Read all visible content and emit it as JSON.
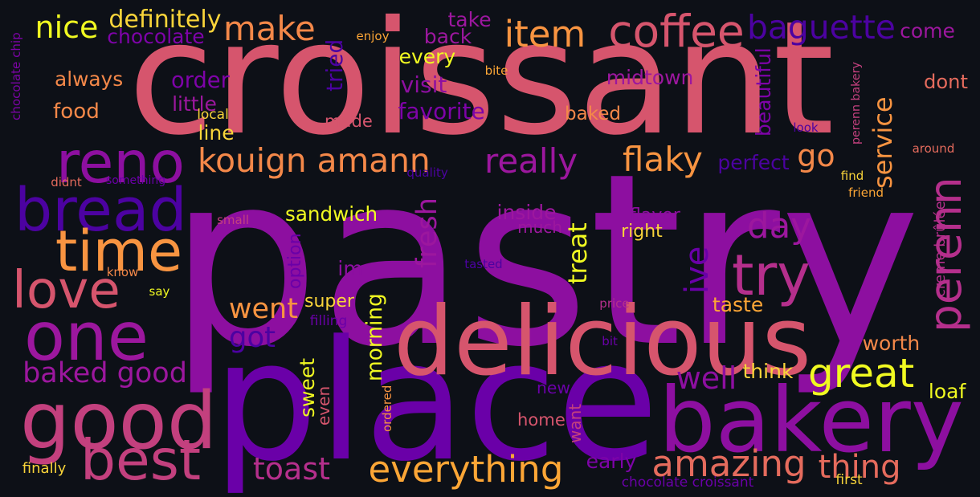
{
  "words": [
    {
      "text": "croissant",
      "color": "#d6556d"
    },
    {
      "text": "pastry",
      "color": "#8d0fa0"
    },
    {
      "text": "place",
      "color": "#6a00a8"
    },
    {
      "text": "delicious",
      "color": "#d6556d"
    },
    {
      "text": "bakery",
      "color": "#8d0fa0"
    },
    {
      "text": "good",
      "color": "#c3407e"
    },
    {
      "text": "one",
      "color": "#9c179e"
    },
    {
      "text": "best",
      "color": "#c3407e"
    },
    {
      "text": "reno",
      "color": "#8d0fa0"
    },
    {
      "text": "bread",
      "color": "#4c02a1"
    },
    {
      "text": "time",
      "color": "#f89441"
    },
    {
      "text": "love",
      "color": "#d6556d"
    },
    {
      "text": "coffee",
      "color": "#d6556d"
    },
    {
      "text": "make",
      "color": "#f48849"
    },
    {
      "text": "item",
      "color": "#f89441"
    },
    {
      "text": "baguette",
      "color": "#4c02a1"
    },
    {
      "text": "kouign amann",
      "color": "#f48849"
    },
    {
      "text": "really",
      "color": "#9c179e"
    },
    {
      "text": "flaky",
      "color": "#f89441"
    },
    {
      "text": "go",
      "color": "#f48849"
    },
    {
      "text": "perenn",
      "color": "#b52f8c"
    },
    {
      "text": "ive",
      "color": "#6a00a8"
    },
    {
      "text": "try",
      "color": "#b52f8c"
    },
    {
      "text": "day",
      "color": "#9c179e"
    },
    {
      "text": "great",
      "color": "#f0f921"
    },
    {
      "text": "amazing",
      "color": "#e56b5d"
    },
    {
      "text": "everything",
      "color": "#fca636"
    },
    {
      "text": "thing",
      "color": "#e56b5d"
    },
    {
      "text": "toast",
      "color": "#b52f8c"
    },
    {
      "text": "baked good",
      "color": "#9c179e"
    },
    {
      "text": "got",
      "color": "#4c02a1"
    },
    {
      "text": "went",
      "color": "#f89441"
    },
    {
      "text": "well",
      "color": "#8d0fa0"
    },
    {
      "text": "nice",
      "color": "#f0f921"
    },
    {
      "text": "definitely",
      "color": "#f9d43a"
    },
    {
      "text": "chocolate",
      "color": "#7e03a8"
    },
    {
      "text": "take",
      "color": "#9c179e"
    },
    {
      "text": "back",
      "color": "#9c179e"
    },
    {
      "text": "every",
      "color": "#f0f921"
    },
    {
      "text": "visit",
      "color": "#8d0fa0"
    },
    {
      "text": "favorite",
      "color": "#7e03a8"
    },
    {
      "text": "baked",
      "color": "#f48849"
    },
    {
      "text": "made",
      "color": "#d6556d"
    },
    {
      "text": "always",
      "color": "#f48849"
    },
    {
      "text": "order",
      "color": "#7e03a8"
    },
    {
      "text": "little",
      "color": "#9c179e"
    },
    {
      "text": "food",
      "color": "#f48849"
    },
    {
      "text": "line",
      "color": "#f9d43a"
    },
    {
      "text": "local",
      "color": "#f9d43a"
    },
    {
      "text": "midtown",
      "color": "#9c179e"
    },
    {
      "text": "come",
      "color": "#9c179e"
    },
    {
      "text": "dont",
      "color": "#e56b5d"
    },
    {
      "text": "service",
      "color": "#f89441"
    },
    {
      "text": "perfect",
      "color": "#4c02a1"
    },
    {
      "text": "beautiful",
      "color": "#7e03a8"
    },
    {
      "text": "tried",
      "color": "#4c02a1"
    },
    {
      "text": "fresh",
      "color": "#9c179e"
    },
    {
      "text": "sandwich",
      "color": "#f0f921"
    },
    {
      "text": "option",
      "color": "#6a00a8"
    },
    {
      "text": "im",
      "color": "#8d0fa0"
    },
    {
      "text": "super",
      "color": "#f9d43a"
    },
    {
      "text": "inside",
      "color": "#9c179e"
    },
    {
      "text": "much",
      "color": "#9c179e"
    },
    {
      "text": "treat",
      "color": "#f0f921"
    },
    {
      "text": "flavor",
      "color": "#8d0fa0"
    },
    {
      "text": "right",
      "color": "#f9d43a"
    },
    {
      "text": "taste",
      "color": "#fca636"
    },
    {
      "text": "worth",
      "color": "#f48849"
    },
    {
      "text": "think",
      "color": "#f9d43a"
    },
    {
      "text": "loaf",
      "color": "#f0f921"
    },
    {
      "text": "sweet",
      "color": "#f0f921"
    },
    {
      "text": "morning",
      "color": "#f0f921"
    },
    {
      "text": "even",
      "color": "#d6556d"
    },
    {
      "text": "ordered",
      "color": "#f89441"
    },
    {
      "text": "new",
      "color": "#6a00a8"
    },
    {
      "text": "home",
      "color": "#d6556d"
    },
    {
      "text": "want",
      "color": "#c3407e"
    },
    {
      "text": "early",
      "color": "#7e03a8"
    },
    {
      "text": "chocolate croissant",
      "color": "#6a00a8"
    },
    {
      "text": "first",
      "color": "#f9d43a"
    },
    {
      "text": "finally",
      "color": "#f9d43a"
    },
    {
      "text": "chocolate chip",
      "color": "#7e03a8"
    },
    {
      "text": "enjoy",
      "color": "#fca636"
    },
    {
      "text": "bite",
      "color": "#fca636"
    },
    {
      "text": "didnt",
      "color": "#e56b5d"
    },
    {
      "text": "something",
      "color": "#6a00a8"
    },
    {
      "text": "quality",
      "color": "#4c02a1"
    },
    {
      "text": "small",
      "color": "#c3407e"
    },
    {
      "text": "know",
      "color": "#f48849"
    },
    {
      "text": "say",
      "color": "#f0f921"
    },
    {
      "text": "filling",
      "color": "#6a00a8"
    },
    {
      "text": "tasted",
      "color": "#4c02a1"
    },
    {
      "text": "price",
      "color": "#b52f8c"
    },
    {
      "text": "bit",
      "color": "#6a00a8"
    },
    {
      "text": "look",
      "color": "#4c02a1"
    },
    {
      "text": "perenn bakery",
      "color": "#c3407e"
    },
    {
      "text": "creme brûlée",
      "color": "#b52f8c"
    },
    {
      "text": "around",
      "color": "#e56b5d"
    },
    {
      "text": "find",
      "color": "#f9d43a"
    },
    {
      "text": "friend",
      "color": "#fca636"
    }
  ]
}
